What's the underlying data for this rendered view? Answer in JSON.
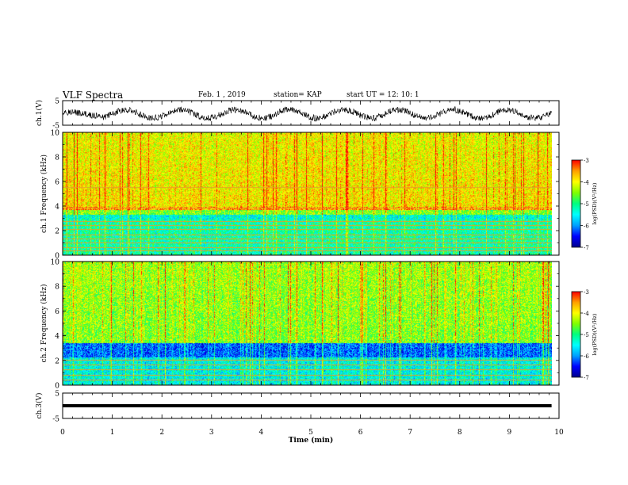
{
  "header": {
    "title": "VLF Spectra",
    "date": "Feb. 1 , 2019",
    "station": "station= KAP",
    "start": "start UT = 12: 10: 1"
  },
  "chart_data": [
    {
      "type": "line",
      "panel": "ch1-waveform",
      "ylabel": "ch.1(V)",
      "ylim": [
        -5,
        5
      ],
      "yticks": [
        "5",
        "-5"
      ],
      "xlim": [
        0,
        10
      ],
      "color": "#000000"
    },
    {
      "type": "heatmap",
      "panel": "ch1-spectrogram",
      "ylabel": "ch.1 Frequency (kHz)",
      "ylim": [
        0,
        10
      ],
      "yticks": [
        "0",
        "2",
        "4",
        "6",
        "8",
        "10"
      ],
      "xlim": [
        0,
        10
      ],
      "data_end_min": 9.85,
      "horizontal_lines_khz": [
        0.3,
        0.6,
        1.0,
        1.3,
        1.6,
        2.1,
        2.4,
        2.7,
        3.8,
        5.5
      ],
      "colorbar": {
        "label": "log(PSD)(V²/Hz)",
        "ticks": [
          "-3",
          "-4",
          "-5",
          "-6",
          "-7"
        ],
        "range": [
          -7,
          -3
        ]
      }
    },
    {
      "type": "heatmap",
      "panel": "ch2-spectrogram",
      "ylabel": "ch.2 Frequency (kHz)",
      "ylim": [
        0,
        10
      ],
      "yticks": [
        "0",
        "2",
        "4",
        "6",
        "8",
        "10"
      ],
      "xlim": [
        0,
        10
      ],
      "data_end_min": 9.85,
      "horizontal_lines_khz": [
        0.4,
        0.8,
        1.2,
        1.6,
        2.0
      ],
      "colorbar": {
        "label": "log(PSD)(V²/Hz)",
        "ticks": [
          "-3",
          "-4",
          "-5",
          "-6",
          "-7"
        ],
        "range": [
          -7,
          -3
        ]
      }
    },
    {
      "type": "line",
      "panel": "ch3-waveform",
      "ylabel": "ch.3(V)",
      "ylim": [
        -5,
        5
      ],
      "yticks": [
        "5",
        "-5"
      ],
      "xlim": [
        0,
        10
      ],
      "constant_value": 0,
      "color": "#000000"
    }
  ],
  "xaxis": {
    "label": "Time (min)",
    "ticks": [
      "0",
      "1",
      "2",
      "3",
      "4",
      "5",
      "6",
      "7",
      "8",
      "9",
      "10"
    ]
  },
  "colormap": [
    "#00008c",
    "#0000ff",
    "#00a0ff",
    "#00ffff",
    "#00ff80",
    "#80ff00",
    "#ffff00",
    "#ffa000",
    "#ff0000",
    "#ffffff"
  ]
}
